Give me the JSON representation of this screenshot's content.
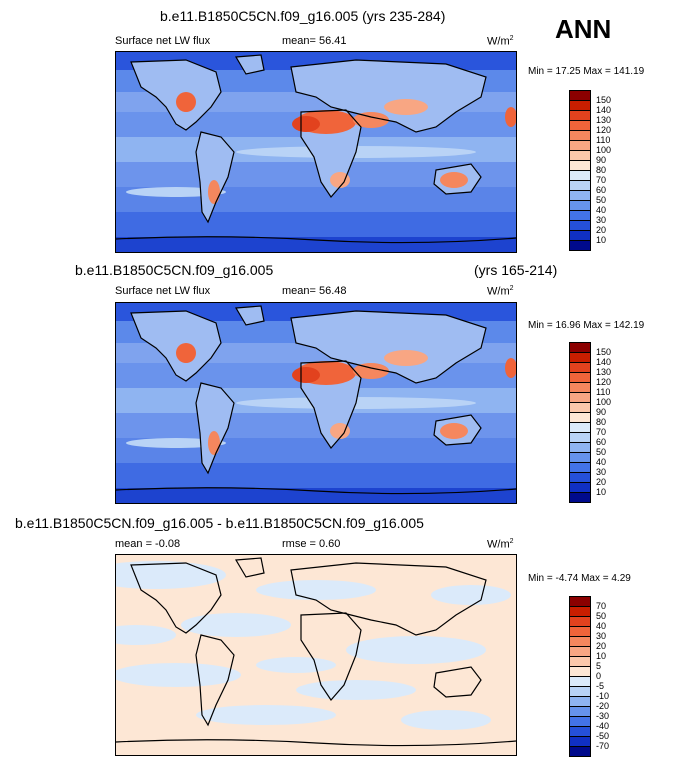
{
  "season": "ANN",
  "panels": [
    {
      "title": "b.e11.B1850C5CN.f09_g16.005 (yrs 235-284)",
      "title_right": "",
      "left_label": "Surface net LW flux",
      "mid_label": "mean=  56.41",
      "units": "W/m",
      "units_sup": "2",
      "minmax": "Min =  17.25 Max = 141.19",
      "levels": [
        "150",
        "140",
        "130",
        "120",
        "110",
        "100",
        "90",
        "80",
        "70",
        "60",
        "50",
        "40",
        "30",
        "20",
        "10"
      ],
      "colors": [
        "#8b0000",
        "#c81e00",
        "#e2421e",
        "#f0643a",
        "#f5875e",
        "#f8a683",
        "#fbc8ab",
        "#fde7d5",
        "#dbeafa",
        "#b9d3f6",
        "#8fb4f1",
        "#6693ec",
        "#4373e8",
        "#2550d9",
        "#1030c4",
        "#000a8c"
      ]
    },
    {
      "title": "b.e11.B1850C5CN.f09_g16.005",
      "title_right": "(yrs 165-214)",
      "left_label": "Surface net LW flux",
      "mid_label": "mean=  56.48",
      "units": "W/m",
      "units_sup": "2",
      "minmax": "Min =  16.96 Max = 142.19",
      "levels": [
        "150",
        "140",
        "130",
        "120",
        "110",
        "100",
        "90",
        "80",
        "70",
        "60",
        "50",
        "40",
        "30",
        "20",
        "10"
      ],
      "colors": [
        "#8b0000",
        "#c81e00",
        "#e2421e",
        "#f0643a",
        "#f5875e",
        "#f8a683",
        "#fbc8ab",
        "#fde7d5",
        "#dbeafa",
        "#b9d3f6",
        "#8fb4f1",
        "#6693ec",
        "#4373e8",
        "#2550d9",
        "#1030c4",
        "#000a8c"
      ]
    },
    {
      "title": "b.e11.B1850C5CN.f09_g16.005 - b.e11.B1850C5CN.f09_g16.005",
      "title_right": "",
      "left_label": "mean =  -0.08",
      "mid_label": "rmse =   0.60",
      "units": "W/m",
      "units_sup": "2",
      "minmax": "Min =  -4.74 Max =   4.29",
      "levels": [
        "70",
        "50",
        "40",
        "30",
        "20",
        "10",
        "5",
        "0",
        "-5",
        "-10",
        "-20",
        "-30",
        "-40",
        "-50",
        "-70"
      ],
      "colors": [
        "#8b0000",
        "#c81e00",
        "#e2421e",
        "#f0643a",
        "#f5875e",
        "#f8a683",
        "#fbc8ab",
        "#fde7d5",
        "#dbeafa",
        "#b9d3f6",
        "#8fb4f1",
        "#6693ec",
        "#4373e8",
        "#2550d9",
        "#1030c4",
        "#000a8c"
      ]
    }
  ]
}
